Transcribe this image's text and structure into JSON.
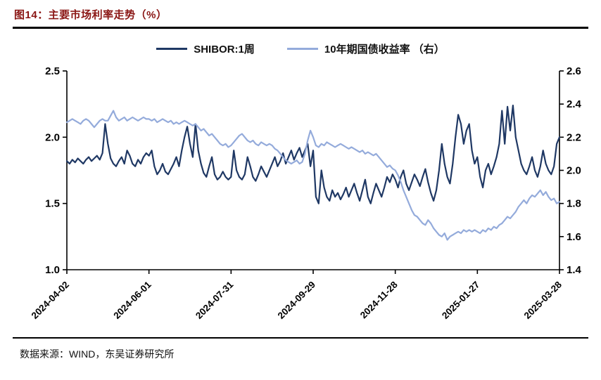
{
  "title": "图14：主要市场利率走势（%）",
  "source": "数据来源：WIND，东吴证券研究所",
  "chart_data": {
    "type": "line",
    "title": "主要市场利率走势（%）",
    "grid": false,
    "legend_position": "top-center",
    "x_tick_labels": [
      "2024-04-02",
      "2024-06-01",
      "2024-07-31",
      "2024-09-29",
      "2024-11-28",
      "2025-01-27",
      "2025-03-28"
    ],
    "left_axis": {
      "min": 1.0,
      "max": 2.5,
      "ticks": [
        "2.5",
        "2.0",
        "1.5",
        "1.0"
      ]
    },
    "right_axis": {
      "min": 1.4,
      "max": 2.6,
      "ticks": [
        "2.6",
        "2.4",
        "2.2",
        "2.0",
        "1.8",
        "1.6",
        "1.4"
      ]
    },
    "series": [
      {
        "name": "SHIBOR:1周",
        "axis": "left",
        "color": "#1f3864",
        "values": [
          1.82,
          1.8,
          1.83,
          1.81,
          1.84,
          1.82,
          1.8,
          1.83,
          1.85,
          1.82,
          1.84,
          1.86,
          1.83,
          1.88,
          2.1,
          1.95,
          1.84,
          1.8,
          1.78,
          1.82,
          1.85,
          1.8,
          1.9,
          1.86,
          1.8,
          1.78,
          1.83,
          1.8,
          1.85,
          1.88,
          1.86,
          1.9,
          1.78,
          1.72,
          1.75,
          1.8,
          1.74,
          1.72,
          1.76,
          1.8,
          1.85,
          1.78,
          1.9,
          2.0,
          2.08,
          1.95,
          1.85,
          2.1,
          1.9,
          1.8,
          1.73,
          1.7,
          1.78,
          1.85,
          1.72,
          1.68,
          1.7,
          1.74,
          1.7,
          1.68,
          1.7,
          1.9,
          1.75,
          1.7,
          1.68,
          1.72,
          1.85,
          1.78,
          1.7,
          1.67,
          1.72,
          1.78,
          1.74,
          1.7,
          1.75,
          1.8,
          1.85,
          1.78,
          1.82,
          1.88,
          1.8,
          1.85,
          1.9,
          1.83,
          1.88,
          1.92,
          1.85,
          1.9,
          1.95,
          1.78,
          1.9,
          1.55,
          1.5,
          1.75,
          1.62,
          1.55,
          1.52,
          1.6,
          1.55,
          1.58,
          1.53,
          1.57,
          1.62,
          1.55,
          1.6,
          1.65,
          1.58,
          1.52,
          1.6,
          1.68,
          1.55,
          1.5,
          1.58,
          1.65,
          1.6,
          1.55,
          1.62,
          1.7,
          1.66,
          1.72,
          1.68,
          1.62,
          1.7,
          1.75,
          1.65,
          1.6,
          1.66,
          1.72,
          1.68,
          1.63,
          1.7,
          1.76,
          1.66,
          1.58,
          1.52,
          1.6,
          1.75,
          1.95,
          1.8,
          1.7,
          1.65,
          1.8,
          2.0,
          2.17,
          2.1,
          1.95,
          2.05,
          2.1,
          1.9,
          1.8,
          1.85,
          1.7,
          1.62,
          1.75,
          1.8,
          1.72,
          1.78,
          1.85,
          1.95,
          2.2,
          1.95,
          2.23,
          2.05,
          2.24,
          2.0,
          1.9,
          1.8,
          1.75,
          1.72,
          1.78,
          1.85,
          1.75,
          1.7,
          1.78,
          1.9,
          1.8,
          1.75,
          1.72,
          1.78,
          1.95,
          2.0
        ]
      },
      {
        "name": "10年期国债收益率 （右）",
        "axis": "right",
        "color": "#94abdb",
        "values": [
          2.29,
          2.3,
          2.31,
          2.3,
          2.29,
          2.28,
          2.3,
          2.31,
          2.3,
          2.28,
          2.26,
          2.28,
          2.3,
          2.31,
          2.3,
          2.3,
          2.33,
          2.36,
          2.32,
          2.3,
          2.31,
          2.32,
          2.3,
          2.31,
          2.32,
          2.31,
          2.3,
          2.31,
          2.32,
          2.31,
          2.31,
          2.3,
          2.31,
          2.29,
          2.3,
          2.31,
          2.3,
          2.29,
          2.3,
          2.28,
          2.29,
          2.28,
          2.29,
          2.3,
          2.29,
          2.28,
          2.27,
          2.28,
          2.26,
          2.24,
          2.25,
          2.23,
          2.21,
          2.22,
          2.2,
          2.18,
          2.16,
          2.15,
          2.16,
          2.14,
          2.15,
          2.17,
          2.19,
          2.21,
          2.22,
          2.2,
          2.18,
          2.17,
          2.18,
          2.16,
          2.15,
          2.17,
          2.16,
          2.15,
          2.16,
          2.15,
          2.13,
          2.12,
          2.1,
          2.08,
          2.06,
          2.05,
          2.04,
          2.05,
          2.06,
          2.04,
          2.05,
          2.1,
          2.18,
          2.24,
          2.2,
          2.15,
          2.14,
          2.16,
          2.15,
          2.17,
          2.16,
          2.15,
          2.14,
          2.15,
          2.16,
          2.15,
          2.14,
          2.13,
          2.14,
          2.13,
          2.12,
          2.11,
          2.12,
          2.1,
          2.11,
          2.1,
          2.09,
          2.1,
          2.08,
          2.06,
          2.04,
          2.02,
          2.03,
          2.01,
          2.0,
          1.97,
          1.93,
          1.88,
          1.84,
          1.8,
          1.76,
          1.73,
          1.72,
          1.7,
          1.68,
          1.67,
          1.7,
          1.68,
          1.65,
          1.63,
          1.61,
          1.6,
          1.62,
          1.58,
          1.6,
          1.61,
          1.62,
          1.63,
          1.62,
          1.64,
          1.63,
          1.64,
          1.63,
          1.64,
          1.63,
          1.62,
          1.64,
          1.63,
          1.65,
          1.64,
          1.66,
          1.65,
          1.67,
          1.68,
          1.7,
          1.72,
          1.71,
          1.73,
          1.75,
          1.78,
          1.8,
          1.82,
          1.8,
          1.83,
          1.85,
          1.84,
          1.86,
          1.88,
          1.85,
          1.87,
          1.84,
          1.82,
          1.83,
          1.8,
          1.81
        ]
      }
    ]
  }
}
